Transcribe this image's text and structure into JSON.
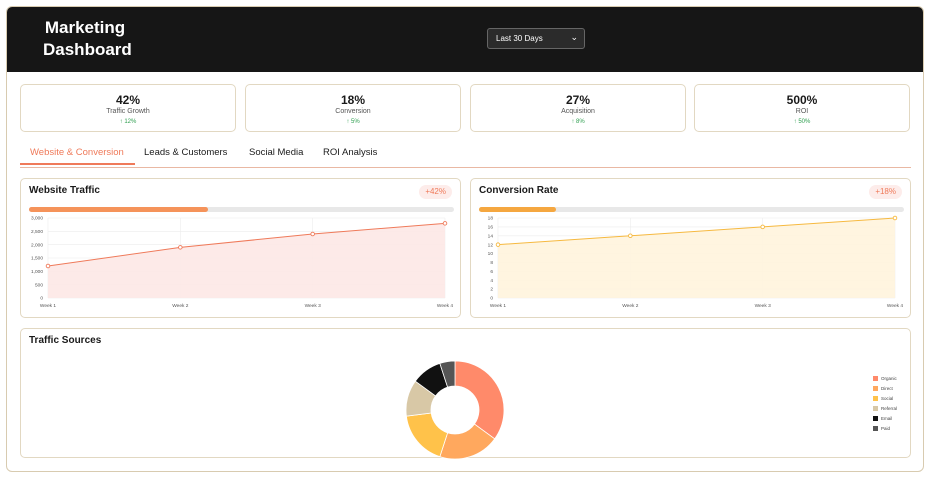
{
  "header": {
    "title": "Marketing Dashboard",
    "range_select": "Last 30 Days"
  },
  "kpis": [
    {
      "value": "42%",
      "label": "Traffic Growth",
      "change": "↑ 12%"
    },
    {
      "value": "18%",
      "label": "Conversion",
      "change": "↑ 5%"
    },
    {
      "value": "27%",
      "label": "Acquisition",
      "change": "↑ 8%"
    },
    {
      "value": "500%",
      "label": "ROI",
      "change": "↑ 50%"
    }
  ],
  "tabs": [
    {
      "label": "Website & Conversion",
      "active": true
    },
    {
      "label": "Leads & Customers",
      "active": false
    },
    {
      "label": "Social Media",
      "active": false
    },
    {
      "label": "ROI Analysis",
      "active": false
    }
  ],
  "colors": {
    "accent": "#ef7a5a",
    "traffic_line": "#ef7a5a",
    "traffic_fill": "#fde8e6",
    "conversion_line": "#f6b940",
    "conversion_fill": "#fff4dd",
    "conversion_progress": "#f5a740",
    "traffic_progress": "#f5935a"
  },
  "traffic_card": {
    "title": "Website Traffic",
    "badge": "+42%",
    "progress": 0.42
  },
  "conversion_card": {
    "title": "Conversion Rate",
    "badge": "+18%",
    "progress": 0.18
  },
  "sources_card": {
    "title": "Traffic Sources"
  },
  "chart_data": [
    {
      "type": "line",
      "x": [
        "Week 1",
        "Week 2",
        "Week 3",
        "Week 4"
      ],
      "series": [
        {
          "values": [
            1200,
            1900,
            2400,
            2800
          ]
        }
      ],
      "yticks": [
        "0",
        "500",
        "1,000",
        "1,500",
        "2,000",
        "2,500",
        "3,000"
      ],
      "ylim": [
        0,
        3000
      ],
      "grid": true,
      "filled": true
    },
    {
      "type": "line",
      "x": [
        "Week 1",
        "Week 2",
        "Week 3",
        "Week 4"
      ],
      "series": [
        {
          "values": [
            12,
            14,
            16,
            18
          ]
        }
      ],
      "yticks": [
        "0",
        "2",
        "4",
        "6",
        "8",
        "10",
        "12",
        "14",
        "16",
        "18"
      ],
      "ylim": [
        0,
        18
      ],
      "grid": true,
      "filled": true
    },
    {
      "type": "pie",
      "donut": true,
      "legend": "right",
      "slices": [
        {
          "label": "Organic",
          "value": 35,
          "color": "#ff8a6a"
        },
        {
          "label": "Direct",
          "value": 20,
          "color": "#ffa85e"
        },
        {
          "label": "Social",
          "value": 18,
          "color": "#ffc24a"
        },
        {
          "label": "Referral",
          "value": 12,
          "color": "#d8c8a6"
        },
        {
          "label": "Email",
          "value": 10,
          "color": "#111111"
        },
        {
          "label": "Paid",
          "value": 5,
          "color": "#555555"
        }
      ]
    }
  ]
}
